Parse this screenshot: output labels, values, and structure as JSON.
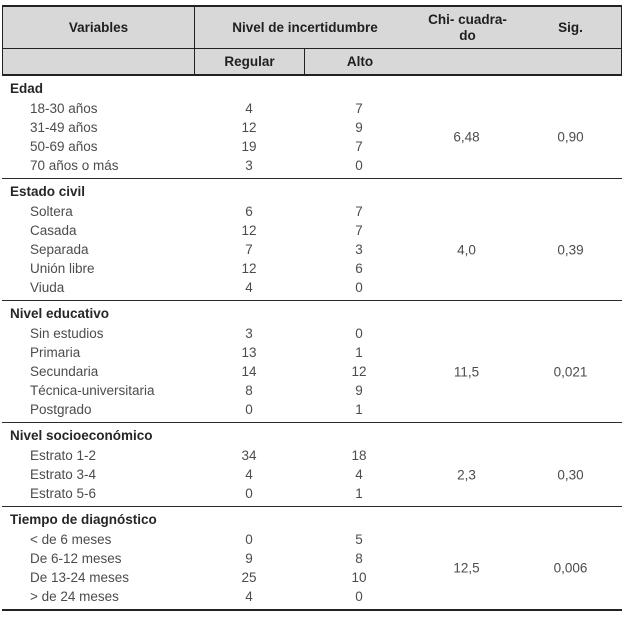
{
  "table": {
    "header": {
      "variables": "Variables",
      "nivel_de_incertidumbre": "Nivel de incertidumbre",
      "chi_cuadrado": "Chi- cuadra-\ndo",
      "sig": "Sig.",
      "regular": "Regular",
      "alto": "Alto"
    },
    "sections": [
      {
        "title": "Edad",
        "rows": [
          {
            "label": "18-30 años",
            "regular": 4,
            "alto": 7
          },
          {
            "label": "31-49 años",
            "regular": 12,
            "alto": 9
          },
          {
            "label": "50-69 años",
            "regular": 19,
            "alto": 7
          },
          {
            "label": "70 años o más",
            "regular": 3,
            "alto": 0
          }
        ],
        "chi_cuadrado": "6,48",
        "sig": "0,90"
      },
      {
        "title": "Estado civil",
        "rows": [
          {
            "label": "Soltera",
            "regular": 6,
            "alto": 7
          },
          {
            "label": "Casada",
            "regular": 12,
            "alto": 7
          },
          {
            "label": "Separada",
            "regular": 7,
            "alto": 3
          },
          {
            "label": "Unión libre",
            "regular": 12,
            "alto": 6
          },
          {
            "label": "Viuda",
            "regular": 4,
            "alto": 0
          }
        ],
        "chi_cuadrado": "4,0",
        "sig": "0,39"
      },
      {
        "title": "Nivel educativo",
        "rows": [
          {
            "label": "Sin estudios",
            "regular": 3,
            "alto": 0
          },
          {
            "label": "Primaria",
            "regular": 13,
            "alto": 1
          },
          {
            "label": "Secundaria",
            "regular": 14,
            "alto": 12
          },
          {
            "label": "Técnica-universitaria",
            "regular": 8,
            "alto": 9
          },
          {
            "label": "Postgrado",
            "regular": 0,
            "alto": 1
          }
        ],
        "chi_cuadrado": "11,5",
        "sig": "0,021"
      },
      {
        "title": "Nivel socioeconómico",
        "rows": [
          {
            "label": "Estrato 1-2",
            "regular": 34,
            "alto": 18
          },
          {
            "label": "Estrato 3-4",
            "regular": 4,
            "alto": 4
          },
          {
            "label": "Estrato 5-6",
            "regular": 0,
            "alto": 1
          }
        ],
        "chi_cuadrado": "2,3",
        "sig": "0,30"
      },
      {
        "title": "Tiempo de diagnóstico",
        "rows": [
          {
            "label": "< de 6 meses",
            "regular": 0,
            "alto": 5
          },
          {
            "label": "De 6-12 meses",
            "regular": 9,
            "alto": 8
          },
          {
            "label": "De 13-24 meses",
            "regular": 25,
            "alto": 10
          },
          {
            "label": "> de 24 meses",
            "regular": 4,
            "alto": 0
          }
        ],
        "chi_cuadrado": "12,5",
        "sig": "0,006"
      }
    ],
    "colors": {
      "header_background": "#d8d8d8",
      "border": "#222222",
      "body_text": "#4c4c4c"
    }
  }
}
